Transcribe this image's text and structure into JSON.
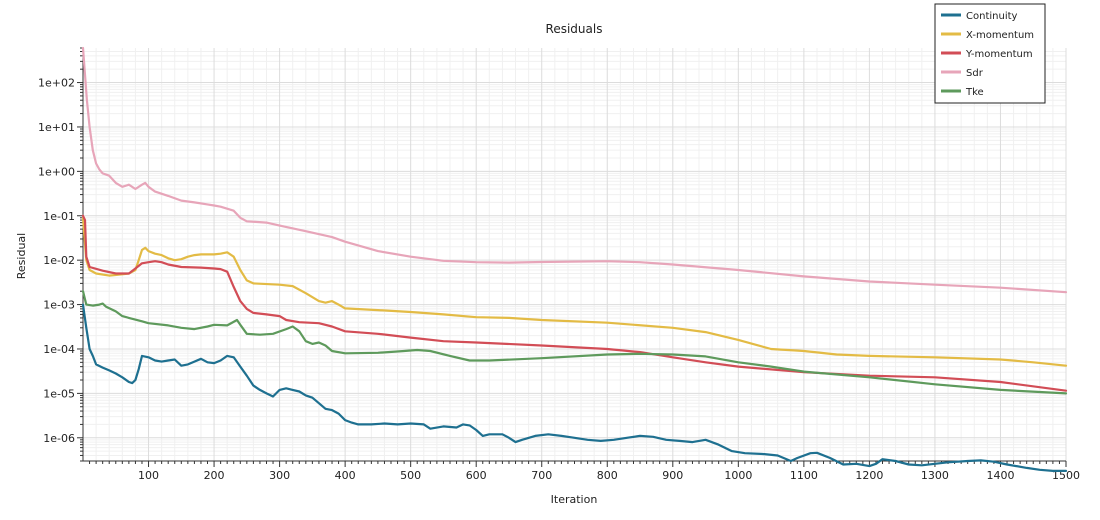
{
  "chart_data": {
    "type": "line",
    "title": "Residuals",
    "xlabel": "Iteration",
    "ylabel": "Residual",
    "xlim": [
      0,
      1500
    ],
    "ylim": [
      3e-07,
      600
    ],
    "yscale": "log",
    "x_ticks": [
      100,
      200,
      300,
      400,
      500,
      600,
      700,
      800,
      900,
      1000,
      1100,
      1200,
      1300,
      1400,
      1500
    ],
    "y_ticks": [
      {
        "value": 1e-06,
        "label": "1e-06"
      },
      {
        "value": 1e-05,
        "label": "1e-05"
      },
      {
        "value": 0.0001,
        "label": "1e-04"
      },
      {
        "value": 0.001,
        "label": "1e-03"
      },
      {
        "value": 0.01,
        "label": "1e-02"
      },
      {
        "value": 0.1,
        "label": "1e-01"
      },
      {
        "value": 1,
        "label": "1e+00"
      },
      {
        "value": 10,
        "label": "1e+01"
      },
      {
        "value": 100,
        "label": "1e+02"
      }
    ],
    "grid": true,
    "legend_position": "top-right",
    "series": [
      {
        "name": "Continuity",
        "color": "#1e7090",
        "points": [
          [
            0,
            0.001
          ],
          [
            5,
            0.0003
          ],
          [
            10,
            0.0001
          ],
          [
            15,
            7e-05
          ],
          [
            20,
            4.5e-05
          ],
          [
            30,
            3.8e-05
          ],
          [
            40,
            3.3e-05
          ],
          [
            50,
            2.8e-05
          ],
          [
            60,
            2.3e-05
          ],
          [
            70,
            1.8e-05
          ],
          [
            75,
            1.7e-05
          ],
          [
            80,
            2e-05
          ],
          [
            85,
            3.5e-05
          ],
          [
            90,
            7e-05
          ],
          [
            100,
            6.5e-05
          ],
          [
            110,
            5.5e-05
          ],
          [
            120,
            5.2e-05
          ],
          [
            130,
            5.5e-05
          ],
          [
            140,
            5.8e-05
          ],
          [
            150,
            4.2e-05
          ],
          [
            160,
            4.5e-05
          ],
          [
            170,
            5.2e-05
          ],
          [
            180,
            6e-05
          ],
          [
            190,
            5e-05
          ],
          [
            200,
            4.8e-05
          ],
          [
            210,
            5.5e-05
          ],
          [
            220,
            7e-05
          ],
          [
            230,
            6.5e-05
          ],
          [
            240,
            4e-05
          ],
          [
            250,
            2.5e-05
          ],
          [
            260,
            1.5e-05
          ],
          [
            270,
            1.2e-05
          ],
          [
            280,
            1e-05
          ],
          [
            290,
            8.5e-06
          ],
          [
            300,
            1.2e-05
          ],
          [
            310,
            1.3e-05
          ],
          [
            320,
            1.2e-05
          ],
          [
            330,
            1.1e-05
          ],
          [
            340,
            9e-06
          ],
          [
            350,
            8e-06
          ],
          [
            360,
            6e-06
          ],
          [
            370,
            4.5e-06
          ],
          [
            380,
            4.2e-06
          ],
          [
            390,
            3.5e-06
          ],
          [
            400,
            2.5e-06
          ],
          [
            410,
            2.2e-06
          ],
          [
            420,
            2e-06
          ],
          [
            440,
            2e-06
          ],
          [
            460,
            2.1e-06
          ],
          [
            480,
            2e-06
          ],
          [
            500,
            2.1e-06
          ],
          [
            520,
            2e-06
          ],
          [
            530,
            1.6e-06
          ],
          [
            550,
            1.8e-06
          ],
          [
            570,
            1.7e-06
          ],
          [
            580,
            2e-06
          ],
          [
            590,
            1.9e-06
          ],
          [
            600,
            1.5e-06
          ],
          [
            610,
            1.1e-06
          ],
          [
            620,
            1.2e-06
          ],
          [
            640,
            1.2e-06
          ],
          [
            650,
            1e-06
          ],
          [
            660,
            8e-07
          ],
          [
            670,
            9e-07
          ],
          [
            690,
            1.1e-06
          ],
          [
            710,
            1.2e-06
          ],
          [
            730,
            1.1e-06
          ],
          [
            750,
            1e-06
          ],
          [
            770,
            9e-07
          ],
          [
            790,
            8.5e-07
          ],
          [
            810,
            9e-07
          ],
          [
            830,
            1e-06
          ],
          [
            850,
            1.1e-06
          ],
          [
            870,
            1.05e-06
          ],
          [
            890,
            9e-07
          ],
          [
            910,
            8.5e-07
          ],
          [
            930,
            8e-07
          ],
          [
            950,
            9e-07
          ],
          [
            970,
            7e-07
          ],
          [
            990,
            5e-07
          ],
          [
            1010,
            4.5e-07
          ],
          [
            1040,
            4.3e-07
          ],
          [
            1060,
            4e-07
          ],
          [
            1080,
            3e-07
          ],
          [
            1090,
            3.5e-07
          ],
          [
            1110,
            4.5e-07
          ],
          [
            1120,
            4.6e-07
          ],
          [
            1140,
            3.5e-07
          ],
          [
            1160,
            2.5e-07
          ],
          [
            1180,
            2.6e-07
          ],
          [
            1200,
            2.3e-07
          ],
          [
            1210,
            2.6e-07
          ],
          [
            1220,
            3.3e-07
          ],
          [
            1240,
            3e-07
          ],
          [
            1260,
            2.5e-07
          ],
          [
            1280,
            2.4e-07
          ],
          [
            1300,
            2.6e-07
          ],
          [
            1320,
            2.8e-07
          ],
          [
            1350,
            3e-07
          ],
          [
            1370,
            3.1e-07
          ],
          [
            1390,
            2.9e-07
          ],
          [
            1410,
            2.5e-07
          ],
          [
            1440,
            2.1e-07
          ],
          [
            1460,
            1.9e-07
          ],
          [
            1480,
            1.8e-07
          ],
          [
            1500,
            1.8e-07
          ]
        ]
      },
      {
        "name": "X-momentum",
        "color": "#e3bb45",
        "points": [
          [
            0,
            0.09
          ],
          [
            5,
            0.01
          ],
          [
            10,
            0.006
          ],
          [
            20,
            0.005
          ],
          [
            40,
            0.0045
          ],
          [
            60,
            0.0048
          ],
          [
            70,
            0.005
          ],
          [
            80,
            0.006
          ],
          [
            85,
            0.01
          ],
          [
            90,
            0.017
          ],
          [
            95,
            0.019
          ],
          [
            100,
            0.016
          ],
          [
            110,
            0.014
          ],
          [
            120,
            0.013
          ],
          [
            130,
            0.011
          ],
          [
            140,
            0.01
          ],
          [
            150,
            0.0105
          ],
          [
            160,
            0.012
          ],
          [
            170,
            0.013
          ],
          [
            180,
            0.0135
          ],
          [
            200,
            0.0135
          ],
          [
            210,
            0.014
          ],
          [
            220,
            0.015
          ],
          [
            230,
            0.012
          ],
          [
            240,
            0.006
          ],
          [
            250,
            0.0035
          ],
          [
            260,
            0.003
          ],
          [
            300,
            0.0028
          ],
          [
            320,
            0.0026
          ],
          [
            340,
            0.0018
          ],
          [
            360,
            0.0012
          ],
          [
            370,
            0.0011
          ],
          [
            380,
            0.0012
          ],
          [
            390,
            0.001
          ],
          [
            400,
            0.00082
          ],
          [
            450,
            0.00075
          ],
          [
            500,
            0.00068
          ],
          [
            550,
            0.0006
          ],
          [
            600,
            0.00052
          ],
          [
            650,
            0.0005
          ],
          [
            700,
            0.00045
          ],
          [
            800,
            0.00039
          ],
          [
            900,
            0.0003
          ],
          [
            950,
            0.00024
          ],
          [
            1000,
            0.00016
          ],
          [
            1050,
            0.0001
          ],
          [
            1100,
            9e-05
          ],
          [
            1150,
            7.5e-05
          ],
          [
            1200,
            7e-05
          ],
          [
            1300,
            6.5e-05
          ],
          [
            1400,
            5.8e-05
          ],
          [
            1450,
            5e-05
          ],
          [
            1500,
            4.2e-05
          ]
        ]
      },
      {
        "name": "Y-momentum",
        "color": "#d24d56",
        "points": [
          [
            0,
            0.1
          ],
          [
            3,
            0.08
          ],
          [
            5,
            0.012
          ],
          [
            10,
            0.007
          ],
          [
            30,
            0.0058
          ],
          [
            50,
            0.005
          ],
          [
            70,
            0.005
          ],
          [
            80,
            0.0065
          ],
          [
            90,
            0.0085
          ],
          [
            100,
            0.009
          ],
          [
            110,
            0.0095
          ],
          [
            120,
            0.009
          ],
          [
            130,
            0.008
          ],
          [
            150,
            0.007
          ],
          [
            180,
            0.0068
          ],
          [
            200,
            0.0065
          ],
          [
            210,
            0.0063
          ],
          [
            220,
            0.0055
          ],
          [
            230,
            0.0025
          ],
          [
            240,
            0.0012
          ],
          [
            250,
            0.0008
          ],
          [
            260,
            0.00065
          ],
          [
            280,
            0.0006
          ],
          [
            300,
            0.00055
          ],
          [
            310,
            0.00045
          ],
          [
            330,
            0.0004
          ],
          [
            360,
            0.00038
          ],
          [
            380,
            0.00032
          ],
          [
            400,
            0.00025
          ],
          [
            450,
            0.00022
          ],
          [
            500,
            0.00018
          ],
          [
            550,
            0.00015
          ],
          [
            600,
            0.00014
          ],
          [
            700,
            0.00012
          ],
          [
            800,
            0.0001
          ],
          [
            850,
            8.5e-05
          ],
          [
            900,
            6.5e-05
          ],
          [
            950,
            5e-05
          ],
          [
            1000,
            4e-05
          ],
          [
            1100,
            3e-05
          ],
          [
            1200,
            2.5e-05
          ],
          [
            1300,
            2.3e-05
          ],
          [
            1400,
            1.8e-05
          ],
          [
            1500,
            1.15e-05
          ]
        ]
      },
      {
        "name": "Sdr",
        "color": "#e7a5b9",
        "points": [
          [
            0,
            600
          ],
          [
            3,
            150
          ],
          [
            6,
            40
          ],
          [
            10,
            10
          ],
          [
            15,
            3
          ],
          [
            20,
            1.5
          ],
          [
            25,
            1.1
          ],
          [
            30,
            0.9
          ],
          [
            40,
            0.8
          ],
          [
            50,
            0.55
          ],
          [
            60,
            0.45
          ],
          [
            70,
            0.5
          ],
          [
            80,
            0.4
          ],
          [
            90,
            0.5
          ],
          [
            95,
            0.55
          ],
          [
            100,
            0.45
          ],
          [
            110,
            0.35
          ],
          [
            130,
            0.28
          ],
          [
            150,
            0.22
          ],
          [
            170,
            0.2
          ],
          [
            190,
            0.18
          ],
          [
            200,
            0.17
          ],
          [
            210,
            0.16
          ],
          [
            230,
            0.13
          ],
          [
            240,
            0.09
          ],
          [
            250,
            0.075
          ],
          [
            280,
            0.07
          ],
          [
            300,
            0.06
          ],
          [
            340,
            0.045
          ],
          [
            380,
            0.033
          ],
          [
            400,
            0.026
          ],
          [
            450,
            0.016
          ],
          [
            500,
            0.012
          ],
          [
            550,
            0.0097
          ],
          [
            600,
            0.009
          ],
          [
            650,
            0.0088
          ],
          [
            700,
            0.0091
          ],
          [
            800,
            0.0095
          ],
          [
            850,
            0.009
          ],
          [
            900,
            0.008
          ],
          [
            1000,
            0.006
          ],
          [
            1100,
            0.0043
          ],
          [
            1200,
            0.0033
          ],
          [
            1300,
            0.0028
          ],
          [
            1400,
            0.0024
          ],
          [
            1500,
            0.0019
          ]
        ]
      },
      {
        "name": "Tke",
        "color": "#5e9a5c",
        "points": [
          [
            0,
            0.002
          ],
          [
            5,
            0.001
          ],
          [
            15,
            0.00095
          ],
          [
            25,
            0.001
          ],
          [
            30,
            0.00105
          ],
          [
            35,
            0.0009
          ],
          [
            50,
            0.0007
          ],
          [
            60,
            0.00055
          ],
          [
            70,
            0.0005
          ],
          [
            90,
            0.00042
          ],
          [
            100,
            0.00038
          ],
          [
            130,
            0.00034
          ],
          [
            150,
            0.0003
          ],
          [
            170,
            0.00028
          ],
          [
            190,
            0.00032
          ],
          [
            200,
            0.00035
          ],
          [
            220,
            0.00034
          ],
          [
            235,
            0.00045
          ],
          [
            240,
            0.00035
          ],
          [
            250,
            0.00022
          ],
          [
            270,
            0.00021
          ],
          [
            290,
            0.00022
          ],
          [
            310,
            0.00028
          ],
          [
            320,
            0.00032
          ],
          [
            330,
            0.00025
          ],
          [
            340,
            0.00015
          ],
          [
            350,
            0.00013
          ],
          [
            360,
            0.00014
          ],
          [
            370,
            0.00012
          ],
          [
            380,
            9e-05
          ],
          [
            400,
            8e-05
          ],
          [
            450,
            8.2e-05
          ],
          [
            490,
            9e-05
          ],
          [
            510,
            9.5e-05
          ],
          [
            530,
            9e-05
          ],
          [
            560,
            7e-05
          ],
          [
            590,
            5.5e-05
          ],
          [
            620,
            5.5e-05
          ],
          [
            700,
            6.2e-05
          ],
          [
            800,
            7.5e-05
          ],
          [
            850,
            7.8e-05
          ],
          [
            900,
            7.5e-05
          ],
          [
            950,
            6.8e-05
          ],
          [
            1000,
            5e-05
          ],
          [
            1050,
            4e-05
          ],
          [
            1100,
            3.1e-05
          ],
          [
            1200,
            2.3e-05
          ],
          [
            1300,
            1.6e-05
          ],
          [
            1400,
            1.2e-05
          ],
          [
            1500,
            1e-05
          ]
        ]
      }
    ]
  }
}
